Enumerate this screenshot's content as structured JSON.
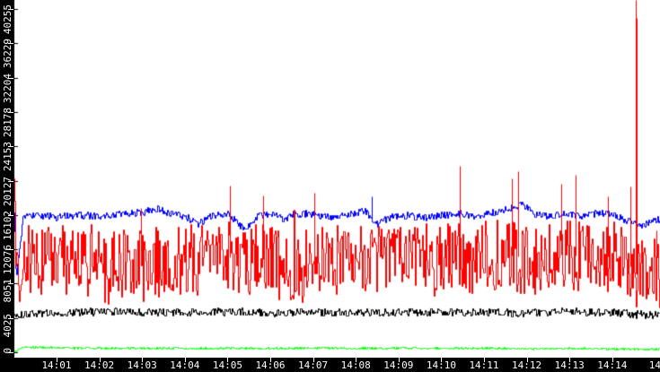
{
  "page": {
    "background": "#ffffff",
    "axis_background": "#000000",
    "axis_text_color": "#ffffff"
  },
  "chart_data": {
    "type": "line",
    "title": "",
    "xlabel": "",
    "ylabel": "",
    "grid": false,
    "legend": "none",
    "x_axis": {
      "unit": "time HH:MM",
      "start": "14:00",
      "visible_end_minutes": 15.1,
      "tick_minutes": [
        1,
        2,
        3,
        4,
        5,
        6,
        7,
        8,
        9,
        10,
        11,
        12,
        13,
        14,
        15
      ],
      "tick_labels": [
        "14:01",
        "14:02",
        "14:03",
        "14:04",
        "14:05",
        "14:06",
        "14:07",
        "14:08",
        "14:09",
        "14:10",
        "14:11",
        "14:12",
        "14:13",
        "14:14",
        "14"
      ],
      "ticks_with_mark": [
        1,
        2,
        3,
        4,
        5,
        6,
        7,
        8,
        9,
        10,
        11,
        12,
        13,
        14
      ]
    },
    "y_axis": {
      "min": 0,
      "max_visible": 41300,
      "tick_values": [
        0,
        4025,
        8051,
        12076,
        16102,
        20127,
        24153,
        28178,
        32204,
        36229,
        40255
      ],
      "tick_labels": [
        "0",
        "4025",
        "8051",
        "12076",
        "16102",
        "20127",
        "24153",
        "28178",
        "32204",
        "36229",
        "40255"
      ]
    },
    "noise_seed": 20,
    "series": [
      {
        "name": "series-black",
        "color": "#000000",
        "noise_amp": 460,
        "spike_prob": 0,
        "spike_boost": 0,
        "keyframes": [
          [
            0,
            4300
          ],
          [
            0.5,
            4600
          ],
          [
            1,
            4700
          ],
          [
            2,
            4800
          ],
          [
            3,
            4750
          ],
          [
            4,
            4700
          ],
          [
            5,
            4800
          ],
          [
            6,
            4700
          ],
          [
            7,
            4750
          ],
          [
            8,
            4700
          ],
          [
            9,
            4750
          ],
          [
            10,
            4700
          ],
          [
            11,
            4750
          ],
          [
            12,
            4650
          ],
          [
            13,
            4850
          ],
          [
            14,
            4700
          ],
          [
            14.7,
            4450
          ],
          [
            15.1,
            4350
          ]
        ],
        "spikes": []
      },
      {
        "name": "series-green",
        "color": "#00ff00",
        "noise_amp": 110,
        "spike_prob": 0,
        "spike_boost": 0,
        "keyframes": [
          [
            0,
            60
          ],
          [
            0.15,
            640
          ],
          [
            0.5,
            620
          ],
          [
            1,
            600
          ],
          [
            2,
            520
          ],
          [
            3,
            540
          ],
          [
            4,
            490
          ],
          [
            5,
            530
          ],
          [
            6,
            480
          ],
          [
            7,
            530
          ],
          [
            8,
            480
          ],
          [
            9,
            550
          ],
          [
            10,
            490
          ],
          [
            11,
            530
          ],
          [
            12,
            460
          ],
          [
            13,
            490
          ],
          [
            14,
            450
          ],
          [
            15.1,
            430
          ]
        ],
        "spikes": []
      },
      {
        "name": "series-blue",
        "color": "#0000ff",
        "noise_amp": 420,
        "spike_prob": 0,
        "spike_boost": 0,
        "keyframes": [
          [
            0,
            16400
          ],
          [
            0.04,
            8500
          ],
          [
            0.2,
            15800
          ],
          [
            0.5,
            16200
          ],
          [
            1,
            15900
          ],
          [
            1.5,
            16100
          ],
          [
            2,
            16000
          ],
          [
            2.5,
            16300
          ],
          [
            3,
            16500
          ],
          [
            3.3,
            16900
          ],
          [
            3.6,
            16300
          ],
          [
            4,
            16000
          ],
          [
            4.3,
            15100
          ],
          [
            4.6,
            16100
          ],
          [
            5,
            16200
          ],
          [
            5.4,
            14400
          ],
          [
            5.7,
            16000
          ],
          [
            6,
            16200
          ],
          [
            6.3,
            15700
          ],
          [
            6.6,
            16300
          ],
          [
            7,
            16200
          ],
          [
            7.4,
            15800
          ],
          [
            7.8,
            16200
          ],
          [
            8.2,
            16600
          ],
          [
            8.5,
            15000
          ],
          [
            8.8,
            16000
          ],
          [
            9.2,
            16100
          ],
          [
            9.6,
            15800
          ],
          [
            10,
            16100
          ],
          [
            10.4,
            16300
          ],
          [
            10.8,
            16000
          ],
          [
            11.2,
            16400
          ],
          [
            11.9,
            17300
          ],
          [
            12.2,
            16200
          ],
          [
            12.5,
            15900
          ],
          [
            12.9,
            16300
          ],
          [
            13.3,
            16000
          ],
          [
            13.7,
            16400
          ],
          [
            14,
            16100
          ],
          [
            14.3,
            15600
          ],
          [
            14.6,
            14900
          ],
          [
            14.9,
            15300
          ],
          [
            15.1,
            15700
          ]
        ],
        "spikes": [
          [
            8.37,
            18300
          ]
        ]
      },
      {
        "name": "series-red",
        "color": "#ff0000",
        "noise_amp": 4300,
        "spike_prob": 0.02,
        "spike_boost": 3500,
        "keyframes": [
          [
            0,
            17300
          ],
          [
            0.08,
            9800
          ],
          [
            0.3,
            11500
          ],
          [
            0.6,
            10500
          ],
          [
            1,
            11000
          ],
          [
            1.4,
            10200
          ],
          [
            1.8,
            10800
          ],
          [
            2.2,
            9800
          ],
          [
            2.6,
            10500
          ],
          [
            3,
            10200
          ],
          [
            3.4,
            10800
          ],
          [
            3.8,
            10400
          ],
          [
            4.2,
            11000
          ],
          [
            4.6,
            10600
          ],
          [
            5,
            11200
          ],
          [
            5.4,
            10400
          ],
          [
            5.8,
            11000
          ],
          [
            6.2,
            10300
          ],
          [
            6.6,
            9800
          ],
          [
            7,
            10800
          ],
          [
            7.4,
            10400
          ],
          [
            7.8,
            11000
          ],
          [
            8.2,
            10600
          ],
          [
            8.6,
            11000
          ],
          [
            9,
            10800
          ],
          [
            9.4,
            11200
          ],
          [
            9.8,
            10800
          ],
          [
            10.2,
            11400
          ],
          [
            10.6,
            11000
          ],
          [
            11,
            11300
          ],
          [
            11.4,
            11600
          ],
          [
            11.8,
            11200
          ],
          [
            12.2,
            11000
          ],
          [
            12.6,
            11400
          ],
          [
            13,
            11600
          ],
          [
            13.4,
            11000
          ],
          [
            13.8,
            11400
          ],
          [
            14.2,
            10800
          ],
          [
            14.45,
            10000
          ],
          [
            14.62,
            8800
          ],
          [
            14.8,
            9200
          ],
          [
            15.1,
            9300
          ]
        ],
        "spikes": [
          [
            2.97,
            16900
          ],
          [
            5.05,
            19600
          ],
          [
            5.83,
            18400
          ],
          [
            7.03,
            18700
          ],
          [
            10.43,
            21900
          ],
          [
            11.65,
            20400
          ],
          [
            11.8,
            21200
          ],
          [
            12.81,
            19800
          ],
          [
            13.14,
            20800
          ],
          [
            13.9,
            18300
          ],
          [
            14.42,
            19400
          ],
          [
            14.55,
            41500
          ],
          [
            14.57,
            39200
          ],
          [
            15.03,
            14300
          ]
        ]
      }
    ]
  }
}
